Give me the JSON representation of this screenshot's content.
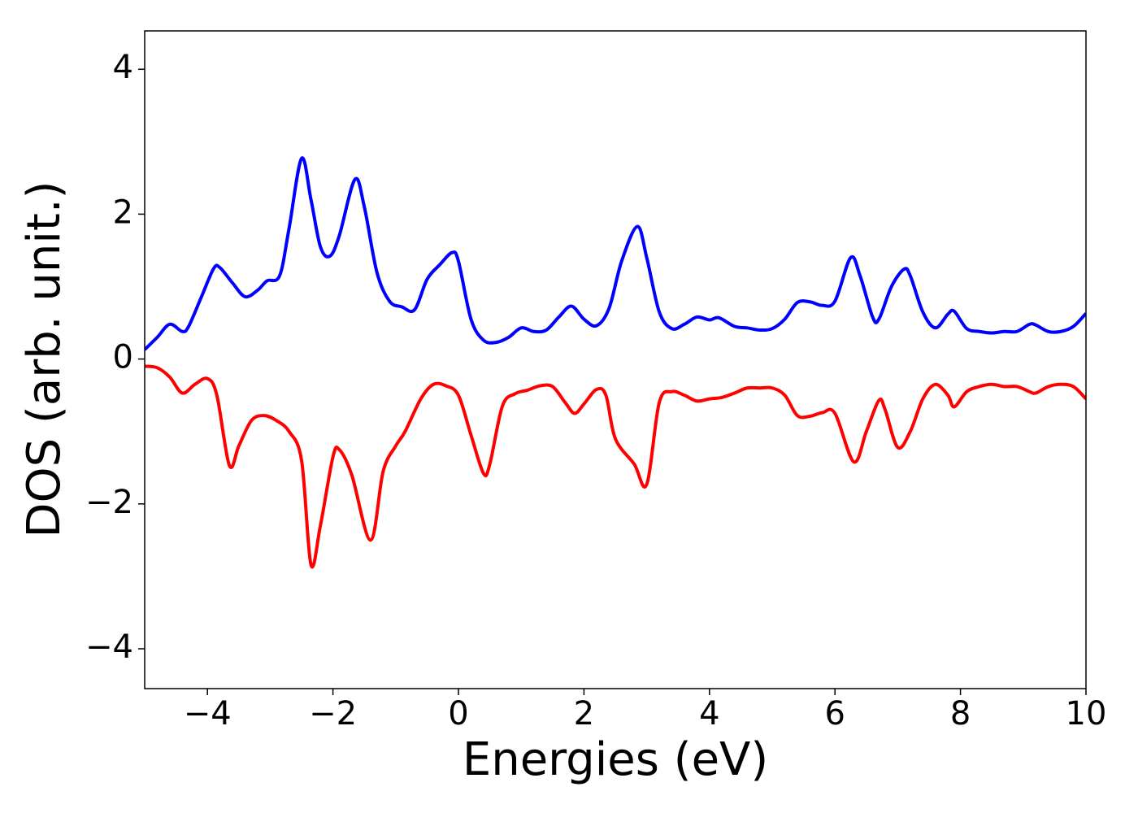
{
  "chart_data": {
    "type": "line",
    "xlabel": "Energies (eV)",
    "ylabel": "DOS (arb. unit.)",
    "xlim": [
      -5,
      10
    ],
    "ylim": [
      -4.55,
      4.53
    ],
    "xticks": [
      {
        "value": -4,
        "label": "−4"
      },
      {
        "value": -2,
        "label": "−2"
      },
      0,
      2,
      4,
      6,
      8,
      10
    ],
    "yticks": [
      {
        "value": -4,
        "label": "−4"
      },
      {
        "value": -2,
        "label": "−2"
      },
      0,
      2,
      4
    ],
    "grid": false,
    "series": [
      {
        "color": "#0000ff",
        "x": [
          -5,
          -4.8,
          -4.6,
          -4.4,
          -4.3,
          -4.1,
          -3.9,
          -3.8,
          -3.6,
          -3.4,
          -3.2,
          -3.05,
          -2.85,
          -2.7,
          -2.5,
          -2.35,
          -2.2,
          -2.05,
          -1.9,
          -1.65,
          -1.5,
          -1.3,
          -1.1,
          -0.9,
          -0.7,
          -0.5,
          -0.3,
          -0.1,
          0,
          0.2,
          0.4,
          0.6,
          0.8,
          1,
          1.2,
          1.4,
          1.6,
          1.8,
          2,
          2.2,
          2.4,
          2.6,
          2.85,
          3,
          3.2,
          3.4,
          3.6,
          3.8,
          4,
          4.15,
          4.4,
          4.6,
          4.8,
          5,
          5.2,
          5.4,
          5.6,
          5.8,
          6,
          6.25,
          6.4,
          6.6,
          6.7,
          6.9,
          7.1,
          7.2,
          7.4,
          7.6,
          7.8,
          7.9,
          8.1,
          8.3,
          8.5,
          8.7,
          8.9,
          9.1,
          9.2,
          9.4,
          9.6,
          9.8,
          10
        ],
        "values": [
          0.13,
          0.3,
          0.48,
          0.38,
          0.45,
          0.85,
          1.25,
          1.26,
          1.05,
          0.86,
          0.95,
          1.08,
          1.15,
          1.8,
          2.77,
          2.2,
          1.55,
          1.42,
          1.7,
          2.48,
          2.1,
          1.2,
          0.8,
          0.72,
          0.68,
          1.1,
          1.3,
          1.47,
          1.35,
          0.55,
          0.26,
          0.23,
          0.3,
          0.43,
          0.38,
          0.4,
          0.58,
          0.73,
          0.55,
          0.46,
          0.7,
          1.35,
          1.83,
          1.4,
          0.65,
          0.42,
          0.48,
          0.58,
          0.54,
          0.57,
          0.45,
          0.43,
          0.4,
          0.42,
          0.55,
          0.78,
          0.79,
          0.74,
          0.8,
          1.4,
          1.15,
          0.58,
          0.55,
          1.0,
          1.24,
          1.15,
          0.65,
          0.43,
          0.62,
          0.66,
          0.42,
          0.38,
          0.36,
          0.38,
          0.38,
          0.48,
          0.47,
          0.38,
          0.38,
          0.45,
          0.63
        ]
      },
      {
        "color": "#ff0000",
        "x": [
          -5,
          -4.8,
          -4.6,
          -4.4,
          -4.2,
          -4,
          -3.85,
          -3.65,
          -3.5,
          -3.3,
          -3.1,
          -2.9,
          -2.7,
          -2.5,
          -2.35,
          -2.2,
          -2,
          -1.9,
          -1.7,
          -1.4,
          -1.2,
          -1,
          -0.85,
          -0.6,
          -0.4,
          -0.2,
          0,
          0.2,
          0.4,
          0.5,
          0.7,
          0.9,
          1.1,
          1.3,
          1.5,
          1.7,
          1.85,
          2,
          2.2,
          2.35,
          2.5,
          2.8,
          3,
          3.2,
          3.4,
          3.6,
          3.8,
          4,
          4.2,
          4.4,
          4.6,
          4.8,
          5,
          5.2,
          5.4,
          5.6,
          5.8,
          6,
          6.3,
          6.5,
          6.7,
          6.8,
          7,
          7.2,
          7.4,
          7.6,
          7.8,
          7.9,
          8.1,
          8.3,
          8.5,
          8.7,
          8.9,
          9.1,
          9.2,
          9.4,
          9.6,
          9.8,
          10
        ],
        "values": [
          -0.1,
          -0.12,
          -0.25,
          -0.47,
          -0.35,
          -0.27,
          -0.5,
          -1.47,
          -1.2,
          -0.85,
          -0.78,
          -0.85,
          -1,
          -1.4,
          -2.84,
          -2.3,
          -1.35,
          -1.25,
          -1.6,
          -2.5,
          -1.55,
          -1.2,
          -1,
          -0.55,
          -0.35,
          -0.37,
          -0.5,
          -1.05,
          -1.58,
          -1.45,
          -0.65,
          -0.48,
          -0.43,
          -0.37,
          -0.38,
          -0.6,
          -0.75,
          -0.62,
          -0.42,
          -0.5,
          -1.1,
          -1.45,
          -1.73,
          -0.6,
          -0.45,
          -0.5,
          -0.58,
          -0.55,
          -0.53,
          -0.47,
          -0.4,
          -0.4,
          -0.4,
          -0.5,
          -0.78,
          -0.79,
          -0.74,
          -0.75,
          -1.42,
          -1,
          -0.57,
          -0.7,
          -1.22,
          -1,
          -0.55,
          -0.35,
          -0.5,
          -0.66,
          -0.45,
          -0.38,
          -0.35,
          -0.38,
          -0.38,
          -0.45,
          -0.47,
          -0.38,
          -0.35,
          -0.38,
          -0.55
        ]
      }
    ]
  }
}
